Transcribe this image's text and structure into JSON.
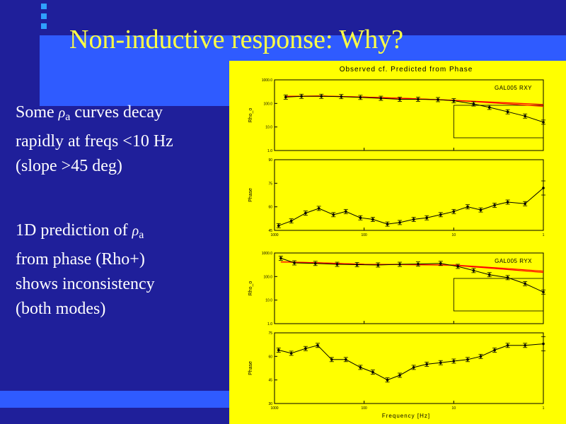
{
  "slide": {
    "title": "Non-inductive response: Why?",
    "paragraph1": {
      "line1_before": "Some ",
      "line1_after": " curves decay",
      "line2": "rapidly at freqs <10 Hz",
      "line3": "(slope >45 deg)"
    },
    "paragraph2": {
      "line1": "1D prediction of ",
      "line2": "from phase (Rho+)",
      "line3": "shows inconsistency",
      "line4": "(both modes)"
    },
    "rho_symbol": "ρ",
    "rho_subscript": "a",
    "colors": {
      "background": "#1f1f9a",
      "accent": "#2f5bff",
      "title": "#ffff44",
      "figure_bg": "#ffff00",
      "predicted_curve": "#ff0000"
    }
  },
  "figure": {
    "title": "Observed cf. Predicted from Phase",
    "xlabel": "Frequency [Hz]",
    "x_ticks": [
      "1000",
      "100",
      "10",
      "1"
    ],
    "rho_ylabel": "Rho_o",
    "phase_ylabel": "Phase",
    "rho_ticks": [
      "1000.0",
      "100.0",
      "10.0",
      "1.0"
    ],
    "phase_ticks_top": [
      "90",
      "75",
      "60",
      "45"
    ],
    "phase_ticks_bottom": [
      "75",
      "60",
      "45",
      "30"
    ],
    "panel_label_xy": "GAL005 RXY",
    "panel_label_yx": "GAL005 RYX"
  },
  "chart_data": [
    {
      "type": "line",
      "name": "GAL005 RXY apparent resistivity",
      "x_scale": "log",
      "xlim": [
        1000,
        1
      ],
      "ylim": [
        1,
        1000
      ],
      "y_scale": "log",
      "x": [
        750,
        500,
        300,
        180,
        110,
        65,
        40,
        25,
        15,
        10,
        6,
        4,
        2.5,
        1.6,
        1.0
      ],
      "y": [
        185,
        200,
        200,
        195,
        180,
        165,
        150,
        150,
        145,
        130,
        95,
        68,
        44,
        29,
        16
      ],
      "predicted": [
        {
          "x": [
            750,
            300,
            100,
            30,
            10,
            3,
            1
          ],
          "y": [
            200,
            205,
            185,
            160,
            135,
            100,
            75
          ]
        },
        {
          "x": [
            750,
            300,
            100,
            30,
            10,
            3,
            1
          ],
          "y": [
            200,
            205,
            185,
            160,
            135,
            110,
            90
          ]
        }
      ]
    },
    {
      "type": "line",
      "name": "GAL005 RXY phase",
      "x_scale": "log",
      "xlim": [
        1000,
        1
      ],
      "ylim": [
        45,
        90
      ],
      "x": [
        900,
        650,
        450,
        320,
        220,
        160,
        110,
        80,
        55,
        40,
        28,
        20,
        14,
        10,
        7,
        5,
        3.5,
        2.5,
        1.6,
        1.0
      ],
      "y": [
        48,
        51,
        56,
        59,
        55,
        57,
        53,
        52,
        49,
        50,
        52,
        53,
        55,
        57,
        60,
        58,
        61,
        63,
        62,
        72
      ]
    },
    {
      "type": "line",
      "name": "GAL005 RYX apparent resistivity",
      "x_scale": "log",
      "xlim": [
        1000,
        1
      ],
      "ylim": [
        1,
        1000
      ],
      "y_scale": "log",
      "x": [
        850,
        600,
        350,
        200,
        120,
        70,
        40,
        25,
        14,
        9,
        6,
        4,
        2.5,
        1.6,
        1.0
      ],
      "y": [
        600,
        380,
        360,
        330,
        320,
        310,
        330,
        340,
        360,
        270,
        180,
        120,
        90,
        50,
        22
      ],
      "predicted": [
        {
          "x": [
            850,
            300,
            100,
            30,
            10,
            3,
            1
          ],
          "y": [
            420,
            380,
            330,
            320,
            310,
            230,
            170
          ]
        },
        {
          "x": [
            850,
            300,
            100,
            30,
            10,
            3,
            1
          ],
          "y": [
            420,
            380,
            330,
            320,
            300,
            210,
            150
          ]
        }
      ]
    },
    {
      "type": "line",
      "name": "GAL005 RYX phase",
      "x_scale": "log",
      "xlim": [
        1000,
        1
      ],
      "ylim": [
        30,
        75
      ],
      "x": [
        900,
        650,
        450,
        330,
        230,
        160,
        110,
        80,
        55,
        40,
        28,
        20,
        14,
        10,
        7,
        5,
        3.5,
        2.5,
        1.6,
        1.0
      ],
      "y": [
        64,
        62,
        65,
        67,
        58,
        58,
        53,
        50,
        45,
        48,
        53,
        55,
        56,
        57,
        58,
        60,
        64,
        67,
        67,
        68
      ]
    }
  ]
}
